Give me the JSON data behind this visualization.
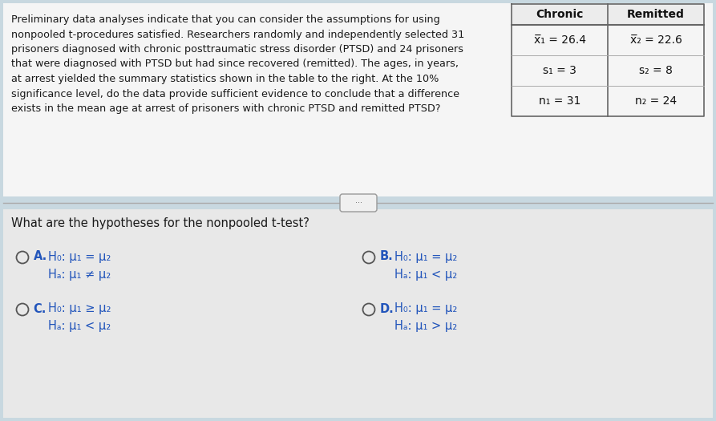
{
  "top_bg": "#f5f5f5",
  "bottom_bg": "#e8e8e8",
  "fig_bg": "#c8d8e0",
  "main_text_lines": [
    "Preliminary data analyses indicate that you can consider the assumptions for using",
    "nonpooled t-procedures satisfied. Researchers randomly and independently selected 31",
    "prisoners diagnosed with chronic posttraumatic stress disorder (PTSD) and 24 prisoners",
    "that were diagnosed with PTSD but had since recovered (remitted). The ages, in years,",
    "at arrest yielded the summary statistics shown in the table to the right. At the 10%",
    "significance level, do the data provide sufficient evidence to conclude that a difference",
    "exists in the mean age at arrest of prisoners with chronic PTSD and remitted PTSD?"
  ],
  "question_text": "What are the hypotheses for the nonpooled t-test?",
  "table_headers": [
    "Chronic",
    "Remitted"
  ],
  "table_rows": [
    [
      "x̅₁ = 26.4",
      "x̅₂ = 22.6"
    ],
    [
      "s₁ = 3",
      "s₂ = 8"
    ],
    [
      "n₁ = 31",
      "n₂ = 24"
    ]
  ],
  "option_A_line1": "H₀: μ₁ = μ₂",
  "option_A_line2": "Hₐ: μ₁ ≠ μ₂",
  "option_B_line1": "H₀: μ₁ = μ₂",
  "option_B_line2": "Hₐ: μ₁ < μ₂",
  "option_C_line1": "H₀: μ₁ ≥ μ₂",
  "option_C_line2": "Hₐ: μ₁ < μ₂",
  "option_D_line1": "H₀: μ₁ = μ₂",
  "option_D_line2": "Hₐ: μ₁ > μ₂",
  "text_color": "#1a1a1a",
  "option_color": "#2255bb"
}
